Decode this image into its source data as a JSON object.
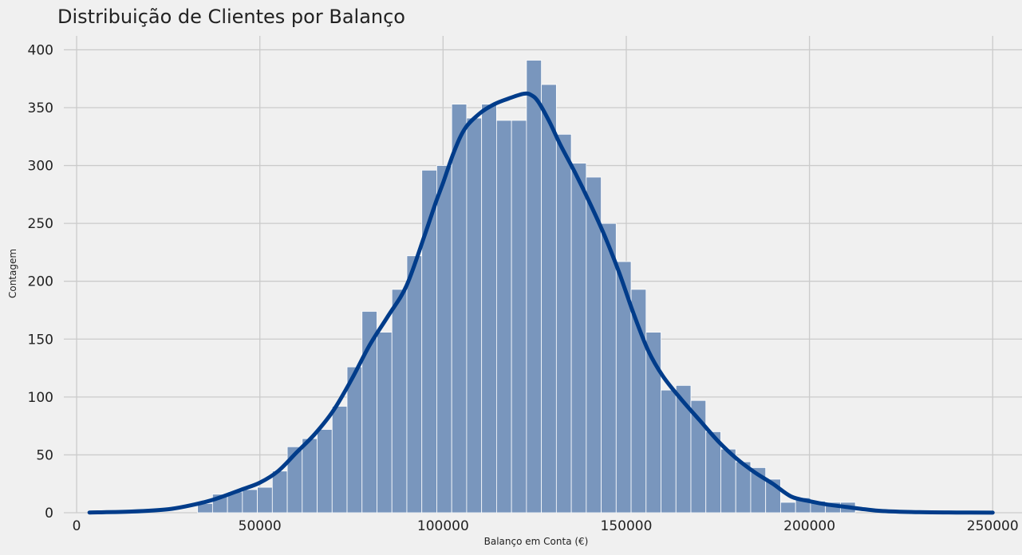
{
  "chart_data": {
    "type": "bar",
    "title": "Distribuição de Clientes por Balanço",
    "xlabel": "Balanço em Conta (€)",
    "ylabel": "Contagem",
    "xlim": [
      -3500,
      258000
    ],
    "ylim": [
      0,
      412
    ],
    "x_ticks": [
      0,
      50000,
      100000,
      150000,
      200000,
      250000
    ],
    "x_tick_labels": [
      "0",
      "50000",
      "100000",
      "150000",
      "200000",
      "250000"
    ],
    "y_ticks": [
      0,
      50,
      100,
      150,
      200,
      250,
      300,
      350,
      400
    ],
    "y_tick_labels": [
      "0",
      "50",
      "100",
      "150",
      "200",
      "250",
      "300",
      "350",
      "400"
    ],
    "grid": true,
    "bin_width": 4080,
    "bins_left_edges": [
      33000,
      37080,
      41160,
      45240,
      49320,
      53400,
      57480,
      61560,
      65640,
      69720,
      73800,
      77880,
      81960,
      86040,
      90120,
      94200,
      98280,
      102360,
      106440,
      110520,
      114600,
      118680,
      122760,
      126840,
      130920,
      135000,
      139080,
      143160,
      147240,
      151320,
      155400,
      159480,
      163560,
      167640,
      171720,
      175800,
      179880,
      183960,
      188040,
      192120,
      196200,
      200280,
      204360,
      208440
    ],
    "values": [
      8,
      16,
      18,
      20,
      22,
      36,
      57,
      64,
      72,
      92,
      126,
      174,
      156,
      193,
      222,
      296,
      300,
      353,
      341,
      353,
      339,
      339,
      391,
      370,
      327,
      302,
      290,
      250,
      217,
      193,
      156,
      106,
      110,
      97,
      70,
      55,
      44,
      39,
      29,
      9,
      13,
      10,
      9,
      9
    ],
    "bar_color": "#7996bd",
    "kde": {
      "name": "KDE",
      "color": "#003c8a",
      "x": [
        3500,
        15000,
        25000,
        32000,
        38000,
        45000,
        50000,
        55000,
        60000,
        65000,
        70000,
        75000,
        80000,
        85000,
        90000,
        95000,
        98000,
        100000,
        103000,
        106000,
        110000,
        114000,
        118000,
        122000,
        124000,
        126000,
        129000,
        132000,
        136000,
        140000,
        144000,
        148000,
        152000,
        156000,
        160000,
        165000,
        170000,
        175000,
        180000,
        185000,
        190000,
        195000,
        200000,
        205000,
        210000,
        215000,
        220000,
        230000,
        240000,
        250000
      ],
      "y": [
        0.2,
        1,
        3,
        7,
        12,
        20,
        26,
        36,
        52,
        68,
        88,
        115,
        145,
        170,
        196,
        240,
        268,
        285,
        312,
        332,
        345,
        353,
        358,
        362,
        361,
        355,
        338,
        318,
        294,
        268,
        240,
        208,
        172,
        140,
        118,
        98,
        80,
        62,
        47,
        35,
        25,
        14,
        10,
        7,
        5,
        3,
        1.5,
        0.5,
        0.2,
        0.1
      ]
    }
  }
}
